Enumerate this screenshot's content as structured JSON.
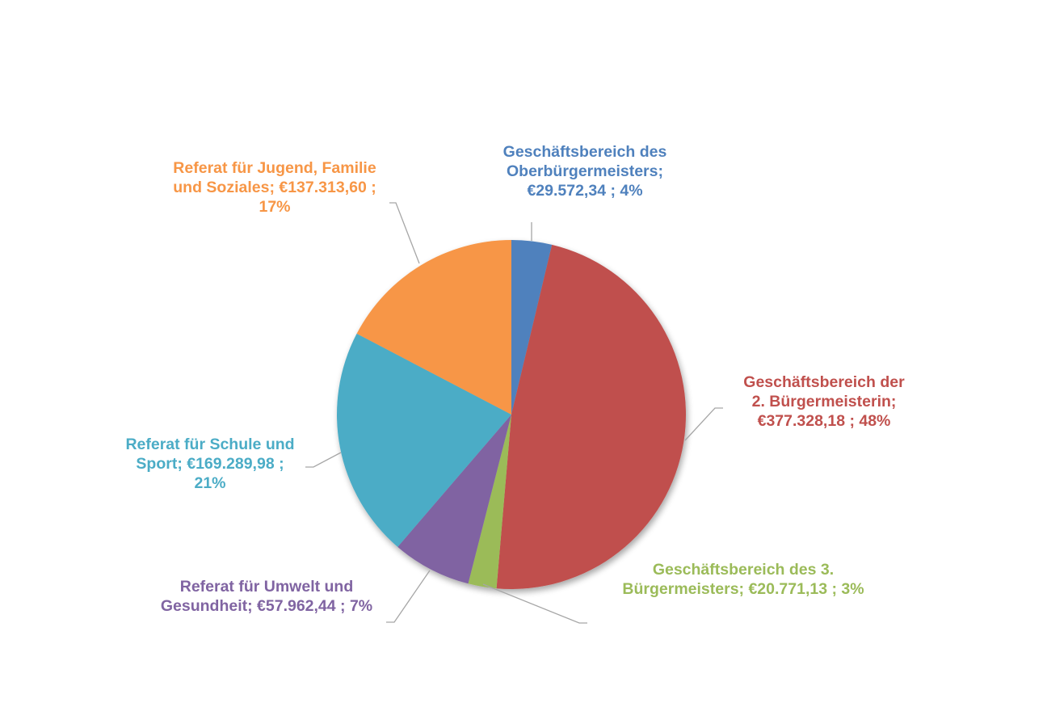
{
  "chart_data": {
    "type": "pie",
    "title": "",
    "start_angle_deg": 0,
    "direction": "clockwise",
    "categories": [
      "Geschäftsbereich des Oberbürgermeisters",
      "Geschäftsbereich der 2. Bürgermeisterin",
      "Geschäftsbereich des 3. Bürgermeisters",
      "Referat für Umwelt und Gesundheit",
      "Referat für Schule und Sport",
      "Referat für Jugend, Familie und Soziales"
    ],
    "values": [
      29572.34,
      377328.18,
      20771.13,
      57962.44,
      169289.98,
      137313.6
    ],
    "percent_labels": [
      "4%",
      "48%",
      "3%",
      "7%",
      "21%",
      "17%"
    ],
    "value_labels": [
      "€29.572,34",
      "€377.328,18",
      "€20.771,13",
      "€57.962,44",
      "€169.289,98",
      "€137.313,60"
    ],
    "colors": [
      "#4f81bd",
      "#c0504d",
      "#9bbb59",
      "#8064a2",
      "#4bacc6",
      "#f79646"
    ],
    "legend": "none",
    "data_labels": "category; value; percent"
  },
  "labels": {
    "blue": "Geschäftsbereich des\nOberbürgermeisters;\n€29.572,34 ; 4%",
    "red": "Geschäftsbereich der\n2. Bürgermeisterin;\n€377.328,18 ; 48%",
    "green": "Geschäftsbereich des 3.\nBürgermeisters; €20.771,13 ; 3%",
    "purple": "Referat für Umwelt und\nGesundheit; €57.962,44 ; 7%",
    "teal": "Referat für Schule und\nSport; €169.289,98 ;\n21%",
    "orange": "Referat für Jugend, Familie\nund Soziales; €137.313,60 ;\n17%"
  }
}
